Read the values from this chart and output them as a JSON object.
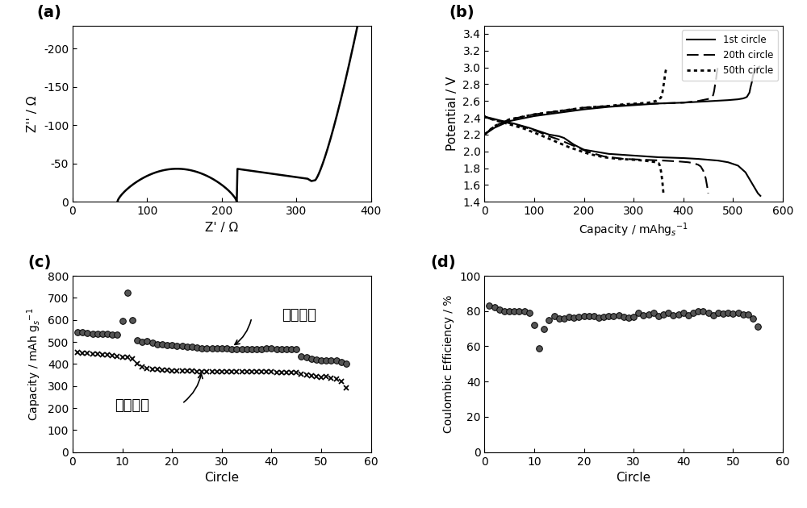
{
  "fig_width": 10.0,
  "fig_height": 6.3,
  "panel_labels": [
    "(a)",
    "(b)",
    "(c)",
    "(d)"
  ],
  "panel_label_fontsize": 14,
  "panel_label_fontweight": "bold",
  "ax_a": {
    "xlabel": "Z' / Ω",
    "ylabel": "Z'' / Ω",
    "xlim": [
      0,
      400
    ],
    "ylim": [
      0,
      230
    ],
    "xticks": [
      0,
      100,
      200,
      300,
      400
    ],
    "yticks": [
      0,
      50,
      100,
      150,
      200
    ],
    "ytick_labels": [
      "0",
      "-50",
      "-100",
      "-150",
      "-200"
    ]
  },
  "ax_b": {
    "xlabel": "Capacity / mAhg$_s$$^{-1}$",
    "ylabel": "Potential / V",
    "xlim": [
      0,
      600
    ],
    "ylim": [
      1.4,
      3.5
    ],
    "xticks": [
      0,
      100,
      200,
      300,
      400,
      500,
      600
    ],
    "yticks": [
      1.4,
      1.6,
      1.8,
      2.0,
      2.2,
      2.4,
      2.6,
      2.8,
      3.0,
      3.2,
      3.4
    ],
    "legend_labels": [
      "1st circle",
      "20th circle",
      "50th circle"
    ]
  },
  "ax_c": {
    "xlabel": "Circle",
    "ylabel": "Capacity / mAh g$_s$$^{-1}$",
    "xlim": [
      0,
      60
    ],
    "ylim": [
      0,
      800
    ],
    "xticks": [
      0,
      10,
      20,
      30,
      40,
      50,
      60
    ],
    "yticks": [
      0,
      100,
      200,
      300,
      400,
      500,
      600,
      700,
      800
    ],
    "label_charge": "充电容量",
    "label_discharge": "放电容量"
  },
  "ax_d": {
    "xlabel": "Circle",
    "ylabel": "Coulombic Efficiency / %",
    "xlim": [
      0,
      60
    ],
    "ylim": [
      0,
      100
    ],
    "xticks": [
      0,
      10,
      20,
      30,
      40,
      50,
      60
    ],
    "yticks": [
      0,
      20,
      40,
      60,
      80,
      100
    ]
  }
}
